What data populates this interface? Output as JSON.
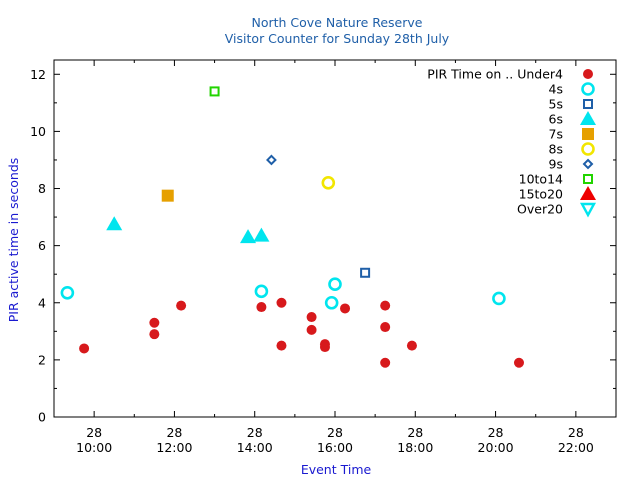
{
  "chart_data": {
    "type": "scatter",
    "title": "North Cove Nature Reserve",
    "subtitle": "Visitor Counter for Sunday 28th July",
    "xlabel": "Event Time",
    "ylabel": "PIR active time in seconds",
    "xlim": [
      "09:00",
      "23:00"
    ],
    "ylim": [
      0,
      12.5
    ],
    "x_ticks": [
      {
        "day": "28",
        "time": "10:00"
      },
      {
        "day": "28",
        "time": "12:00"
      },
      {
        "day": "28",
        "time": "14:00"
      },
      {
        "day": "28",
        "time": "16:00"
      },
      {
        "day": "28",
        "time": "18:00"
      },
      {
        "day": "28",
        "time": "20:00"
      },
      {
        "day": "28",
        "time": "22:00"
      }
    ],
    "y_ticks": [
      "0",
      "2",
      "4",
      "6",
      "8",
      "10",
      "12"
    ],
    "legend_placement": "top-right",
    "legend_title": "PIR Time on .. Under4",
    "series": [
      {
        "name": "Under4",
        "marker": "filled-circle",
        "color": "#d7191c",
        "points": [
          {
            "x": "09:45",
            "y": 2.4
          },
          {
            "x": "11:30",
            "y": 3.3
          },
          {
            "x": "11:30",
            "y": 2.9
          },
          {
            "x": "12:10",
            "y": 3.9
          },
          {
            "x": "14:10",
            "y": 3.85
          },
          {
            "x": "14:40",
            "y": 4.0
          },
          {
            "x": "14:40",
            "y": 2.5
          },
          {
            "x": "15:25",
            "y": 3.5
          },
          {
            "x": "15:25",
            "y": 3.05
          },
          {
            "x": "15:45",
            "y": 2.55
          },
          {
            "x": "15:45",
            "y": 2.45
          },
          {
            "x": "16:15",
            "y": 3.8
          },
          {
            "x": "17:15",
            "y": 3.9
          },
          {
            "x": "17:15",
            "y": 3.15
          },
          {
            "x": "17:15",
            "y": 1.9
          },
          {
            "x": "17:55",
            "y": 2.5
          },
          {
            "x": "20:35",
            "y": 1.9
          }
        ]
      },
      {
        "name": "4s",
        "marker": "open-circle",
        "color": "#00e5ee",
        "points": [
          {
            "x": "09:20",
            "y": 4.35
          },
          {
            "x": "14:10",
            "y": 4.4
          },
          {
            "x": "15:55",
            "y": 4.0
          },
          {
            "x": "16:00",
            "y": 4.65
          },
          {
            "x": "20:05",
            "y": 4.15
          }
        ]
      },
      {
        "name": "5s",
        "marker": "open-square",
        "color": "#1f5fa8",
        "points": [
          {
            "x": "16:45",
            "y": 5.05
          }
        ]
      },
      {
        "name": "6s",
        "marker": "filled-triangle",
        "color": "#00e5ee",
        "points": [
          {
            "x": "10:30",
            "y": 6.75
          },
          {
            "x": "13:50",
            "y": 6.3
          },
          {
            "x": "14:10",
            "y": 6.35
          }
        ]
      },
      {
        "name": "7s",
        "marker": "filled-square",
        "color": "#e6a000",
        "points": [
          {
            "x": "11:50",
            "y": 7.75
          }
        ]
      },
      {
        "name": "8s",
        "marker": "open-circle",
        "color": "#f2e600",
        "points": [
          {
            "x": "15:50",
            "y": 8.2
          }
        ]
      },
      {
        "name": "9s",
        "marker": "open-diamond",
        "color": "#1f5fa8",
        "points": [
          {
            "x": "14:25",
            "y": 9.0
          }
        ]
      },
      {
        "name": "10to14",
        "marker": "open-square",
        "color": "#22d400",
        "points": [
          {
            "x": "13:00",
            "y": 11.4
          }
        ]
      },
      {
        "name": "15to20",
        "marker": "filled-triangle",
        "color": "#ee0000",
        "points": []
      },
      {
        "name": "Over20",
        "marker": "open-triangle-down",
        "color": "#00e5ee",
        "points": []
      }
    ]
  }
}
